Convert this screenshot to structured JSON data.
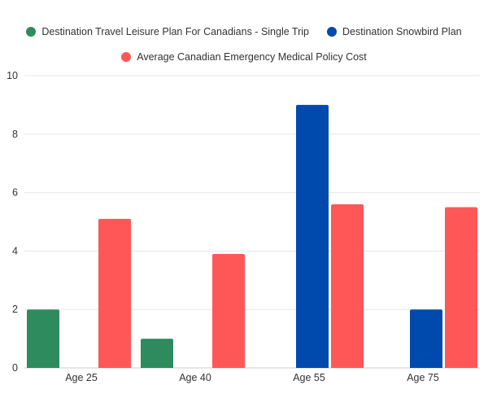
{
  "chart_data": {
    "type": "bar",
    "categories": [
      "Age 25",
      "Age 40",
      "Age 55",
      "Age 75"
    ],
    "series": [
      {
        "name": "Destination Travel Leisure Plan For Canadians - Single Trip",
        "color": "#2e8b5e",
        "values": [
          2,
          1,
          null,
          null
        ]
      },
      {
        "name": "Destination Snowbird Plan",
        "color": "#004aad",
        "values": [
          null,
          null,
          9,
          2
        ]
      },
      {
        "name": "Average Canadian Emergency Medical Policy Cost",
        "color": "#ff5757",
        "values": [
          5.1,
          3.9,
          5.6,
          5.5
        ]
      }
    ],
    "ylim": [
      0,
      10
    ],
    "yticks": [
      0,
      2,
      4,
      6,
      8,
      10
    ],
    "grid": true,
    "legend": "top"
  }
}
